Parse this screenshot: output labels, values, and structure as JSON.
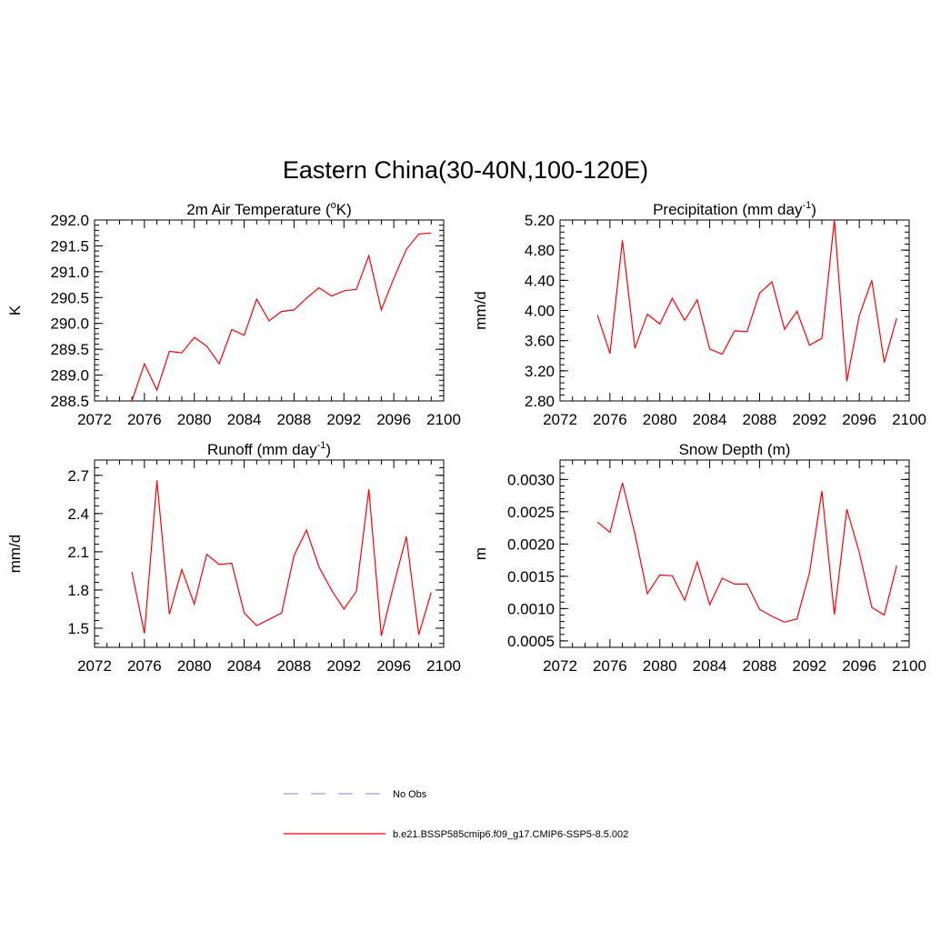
{
  "main_title": "Eastern China(30-40N,100-120E)",
  "chart_data": [
    {
      "type": "line",
      "title": "2m Air Temperature (",
      "title_sup": "o",
      "title_tail": "K)",
      "ylabel": "K",
      "xlim": [
        2072,
        2100
      ],
      "ylim": [
        288.5,
        292.0
      ],
      "x_ticks": [
        "2072",
        "2076",
        "2080",
        "2084",
        "2088",
        "2092",
        "2096",
        "2100"
      ],
      "y_ticks": [
        "288.5",
        "289.0",
        "289.5",
        "290.0",
        "290.5",
        "291.0",
        "291.5",
        "292.0"
      ],
      "series": [
        {
          "color": "#ff0000",
          "x": [
            2075,
            2076,
            2077,
            2078,
            2079,
            2080,
            2081,
            2082,
            2083,
            2084,
            2085,
            2086,
            2087,
            2088,
            2089,
            2090,
            2091,
            2092,
            2093,
            2094,
            2095,
            2096,
            2097,
            2098,
            2099
          ],
          "y": [
            288.5,
            289.22,
            288.71,
            289.46,
            289.43,
            289.73,
            289.56,
            289.22,
            289.88,
            289.77,
            290.47,
            290.05,
            290.23,
            290.26,
            290.49,
            290.69,
            290.53,
            290.63,
            290.66,
            291.31,
            290.26,
            290.87,
            291.43,
            291.73,
            291.75
          ]
        }
      ]
    },
    {
      "type": "line",
      "title": "Precipitation (mm day",
      "title_sup": "-1",
      "title_tail": ")",
      "ylabel": "mm/d",
      "xlim": [
        2072,
        2100
      ],
      "ylim": [
        2.8,
        5.2
      ],
      "x_ticks": [
        "2072",
        "2076",
        "2080",
        "2084",
        "2088",
        "2092",
        "2096",
        "2100"
      ],
      "y_ticks": [
        "2.80",
        "3.20",
        "3.60",
        "4.00",
        "4.40",
        "4.80",
        "5.20"
      ],
      "series": [
        {
          "color": "#ff0000",
          "x": [
            2075,
            2076,
            2077,
            2078,
            2079,
            2080,
            2081,
            2082,
            2083,
            2084,
            2085,
            2086,
            2087,
            2088,
            2089,
            2090,
            2091,
            2092,
            2093,
            2094,
            2095,
            2096,
            2097,
            2098,
            2099
          ],
          "y": [
            3.94,
            3.43,
            4.93,
            3.5,
            3.95,
            3.82,
            4.16,
            3.87,
            4.14,
            3.49,
            3.42,
            3.73,
            3.72,
            4.23,
            4.38,
            3.75,
            3.99,
            3.54,
            3.63,
            5.2,
            3.06,
            3.93,
            4.4,
            3.31,
            3.9
          ]
        }
      ]
    },
    {
      "type": "line",
      "title": "Runoff (mm day",
      "title_sup": "-1",
      "title_tail": ")",
      "ylabel": "mm/d",
      "xlim": [
        2072,
        2100
      ],
      "ylim": [
        1.35,
        2.82
      ],
      "x_ticks": [
        "2072",
        "2076",
        "2080",
        "2084",
        "2088",
        "2092",
        "2096",
        "2100"
      ],
      "y_ticks": [
        "1.5",
        "1.8",
        "2.1",
        "2.4",
        "2.7"
      ],
      "y_tick_values": [
        1.5,
        1.8,
        2.1,
        2.4,
        2.7
      ],
      "series": [
        {
          "color": "#ff0000",
          "x": [
            2075,
            2076,
            2077,
            2078,
            2079,
            2080,
            2081,
            2082,
            2083,
            2084,
            2085,
            2086,
            2087,
            2088,
            2089,
            2090,
            2091,
            2092,
            2093,
            2094,
            2095,
            2096,
            2097,
            2098,
            2099
          ],
          "y": [
            1.94,
            1.46,
            2.66,
            1.61,
            1.96,
            1.69,
            2.08,
            2.0,
            2.01,
            1.62,
            1.52,
            1.57,
            1.62,
            2.07,
            2.27,
            1.98,
            1.8,
            1.65,
            1.79,
            2.59,
            1.44,
            1.84,
            2.22,
            1.45,
            1.78
          ]
        }
      ]
    },
    {
      "type": "line",
      "title": "Snow Depth (m)",
      "title_sup": "",
      "title_tail": "",
      "ylabel": "m",
      "xlim": [
        2072,
        2100
      ],
      "ylim": [
        0.0004,
        0.0033
      ],
      "x_ticks": [
        "2072",
        "2076",
        "2080",
        "2084",
        "2088",
        "2092",
        "2096",
        "2100"
      ],
      "y_ticks": [
        "0.0005",
        "0.0010",
        "0.0015",
        "0.0020",
        "0.0025",
        "0.0030"
      ],
      "y_tick_values": [
        0.0005,
        0.001,
        0.0015,
        0.002,
        0.0025,
        0.003
      ],
      "series": [
        {
          "color": "#ff0000",
          "x": [
            2075,
            2076,
            2077,
            2078,
            2079,
            2080,
            2081,
            2082,
            2083,
            2084,
            2085,
            2086,
            2087,
            2088,
            2089,
            2090,
            2091,
            2092,
            2093,
            2094,
            2095,
            2096,
            2097,
            2098,
            2099
          ],
          "y": [
            0.00234,
            0.00218,
            0.00295,
            0.00216,
            0.00123,
            0.00152,
            0.00151,
            0.00113,
            0.00172,
            0.00106,
            0.00147,
            0.00138,
            0.00138,
            0.00099,
            0.00088,
            0.00079,
            0.00084,
            0.00155,
            0.00282,
            0.00091,
            0.00254,
            0.00187,
            0.00102,
            0.0009,
            0.00167
          ]
        }
      ]
    }
  ],
  "legend": [
    {
      "label": "No Obs",
      "color": "#9999ff",
      "dash": true
    },
    {
      "label": "b.e21.BSSP585cmip6.f09_g17.CMIP6-SSP5-8.5.002",
      "color": "#ff0000",
      "dash": false
    }
  ]
}
